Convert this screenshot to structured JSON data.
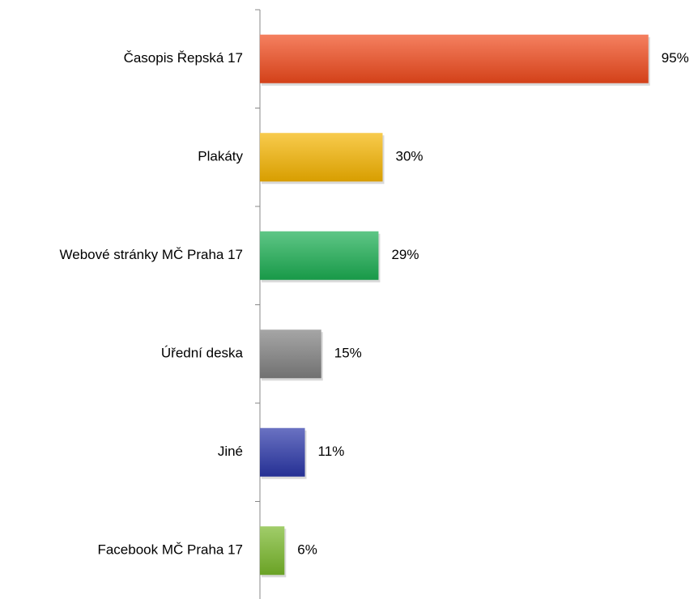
{
  "chart_data": {
    "type": "bar",
    "orientation": "horizontal",
    "categories": [
      "Časopis Řepská 17",
      "Plakáty",
      "Webové stránky MČ Praha 17",
      "Úřední deska",
      "Jiné",
      "Facebook MČ Praha 17"
    ],
    "values": [
      95,
      30,
      29,
      15,
      11,
      6
    ],
    "value_labels": [
      "95%",
      "30%",
      "29%",
      "15%",
      "11%",
      "6%"
    ],
    "colors": [
      "#f04a1c",
      "#f5b400",
      "#1bae52",
      "#808080",
      "#2a36a8",
      "#78b82a"
    ]
  }
}
